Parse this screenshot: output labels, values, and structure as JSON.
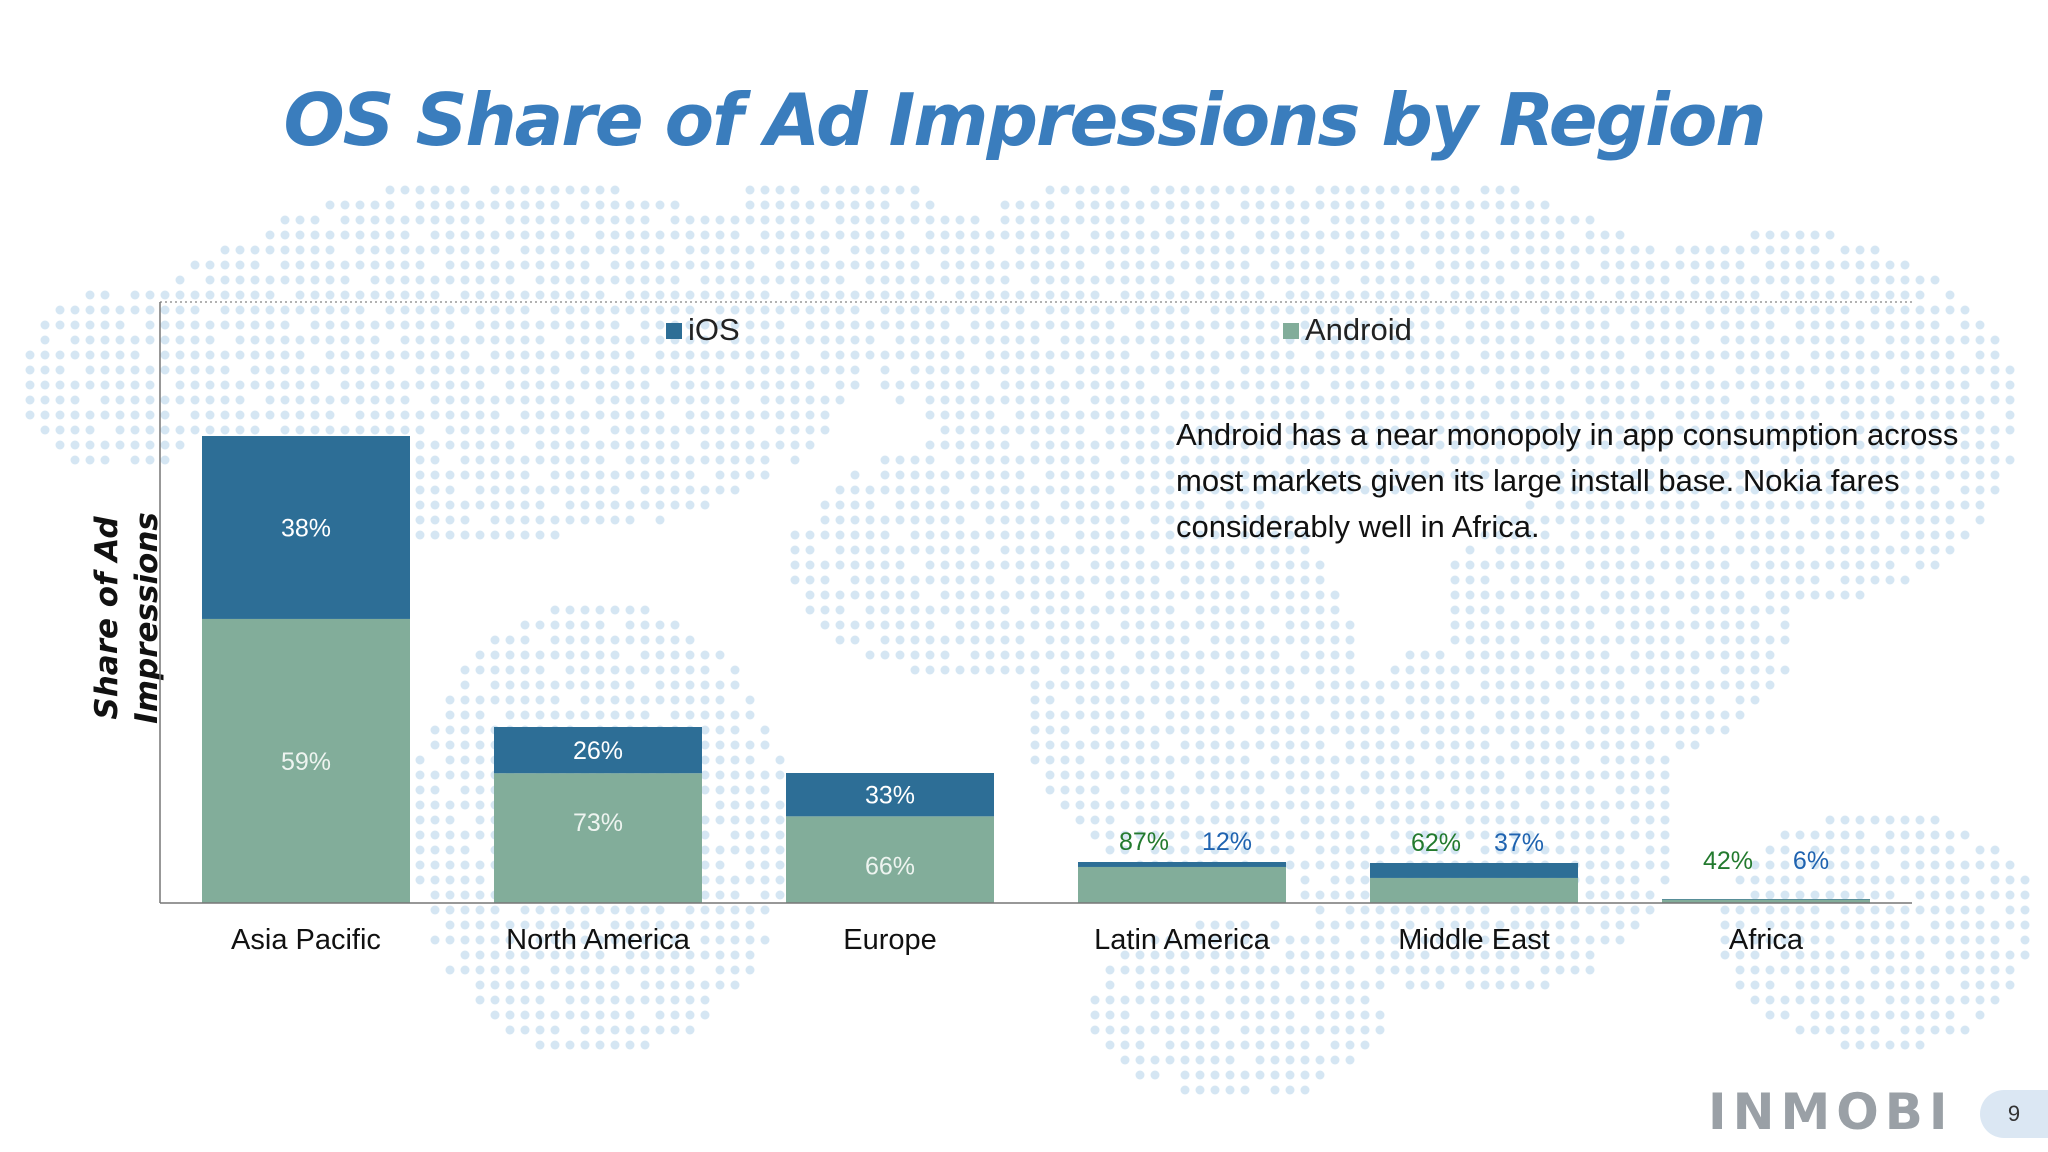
{
  "title": "OS Share of Ad Impressions by Region",
  "ylabel": "Share of Ad Impressions",
  "annotation": "Android has a near monopoly in app consumption across most markets given its large install base. Nokia fares considerably well in Africa.",
  "logo_text": "INMOBI",
  "page_number": "9",
  "colors": {
    "ios": "#2d6e96",
    "android": "#82ad9a",
    "title": "#3a7dbd",
    "label_green": "#237a2e",
    "label_blue": "#1f63b0"
  },
  "chart_data": {
    "type": "bar",
    "stacked": true,
    "categories": [
      "Asia Pacific",
      "North America",
      "Europe",
      "Latin America",
      "Middle East",
      "Africa"
    ],
    "series": [
      {
        "name": "Android",
        "values": [
          59,
          73,
          66,
          87,
          62,
          42
        ],
        "labels": [
          "59%",
          "73%",
          "66%",
          "87%",
          "62%",
          "42%"
        ]
      },
      {
        "name": "iOS",
        "values": [
          38,
          26,
          33,
          12,
          37,
          6
        ],
        "labels": [
          "38%",
          "26%",
          "33%",
          "12%",
          "37%",
          "6%"
        ]
      }
    ],
    "legend": [
      "iOS",
      "Android"
    ],
    "legend_position": "top",
    "bar_heights_relative": [
      467,
      176,
      130,
      41,
      40,
      4
    ],
    "ylabel": "Share of Ad Impressions",
    "grid": false
  }
}
